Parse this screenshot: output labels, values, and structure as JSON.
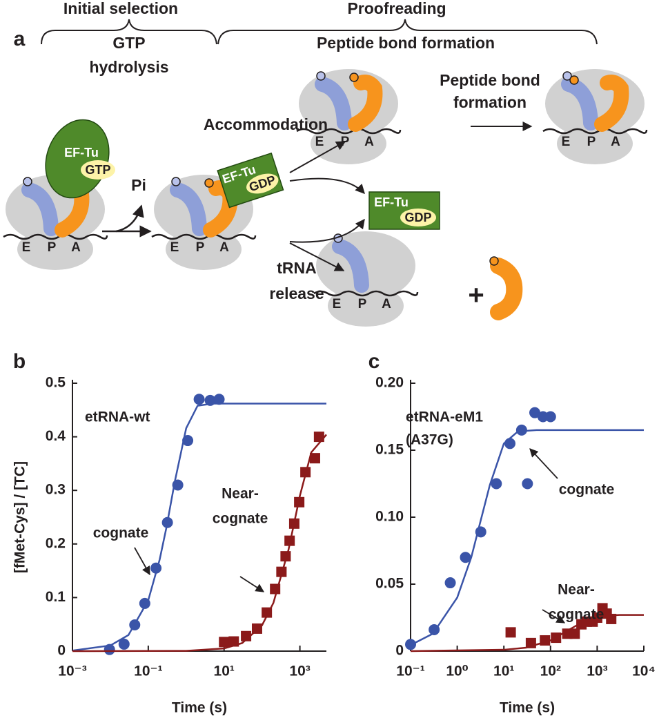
{
  "panel_a": {
    "label": "a",
    "phases": [
      "Initial selection",
      "Proofreading"
    ],
    "gtp_hydrolysis": [
      "GTP",
      "hydrolysis"
    ],
    "peptide_bond_header": "Peptide bond formation",
    "factor": "EF-Tu",
    "gtp": "GTP",
    "gdp": "GDP",
    "pi": "Pi",
    "accommodation": "Accommodation",
    "peptide_bond_formation": [
      "Peptide bond",
      "formation"
    ],
    "trna_release": [
      "tRNA",
      "release"
    ],
    "plus": "+",
    "sites": [
      "E",
      "P",
      "A"
    ]
  },
  "chart_data": [
    {
      "type": "scatter",
      "panel_label": "b",
      "title": [
        "etRNA-wt"
      ],
      "x_scale": "log",
      "xlim": [
        0.001,
        5000
      ],
      "xticks": [
        {
          "value": 0.001,
          "label": "10⁻³"
        },
        {
          "value": 0.1,
          "label": "10⁻¹"
        },
        {
          "value": 10,
          "label": "10¹"
        },
        {
          "value": 1000,
          "label": "10³"
        }
      ],
      "ylim": [
        0,
        0.5
      ],
      "yticks": [
        0,
        0.1,
        0.2,
        0.3,
        0.4,
        0.5
      ],
      "xlabel": "Time (s)",
      "ylabel": "[fMet-Cys] / [TC]",
      "series": [
        {
          "label": [
            "cognate"
          ],
          "color": "#3a54a8",
          "marker": "circle",
          "x": [
            0.0095,
            0.023,
            0.044,
            0.081,
            0.16,
            0.32,
            0.6,
            1.1,
            2.2,
            4.3,
            7.4
          ],
          "values": [
            0.003,
            0.013,
            0.049,
            0.089,
            0.155,
            0.24,
            0.31,
            0.393,
            0.47,
            0.468,
            0.47
          ],
          "fit": {
            "x": [
              0.001,
              0.01,
              0.03,
              0.1,
              0.2,
              0.3,
              0.5,
              1,
              2,
              5,
              5000
            ],
            "values": [
              0.001,
              0.0105,
              0.03,
              0.095,
              0.171,
              0.23,
              0.316,
              0.416,
              0.458,
              0.462,
              0.462
            ]
          }
        },
        {
          "label": [
            "Near-",
            "cognate"
          ],
          "color": "#8b1a1a",
          "marker": "square",
          "x": [
            10,
            18,
            38,
            74,
            134,
            222,
            326,
            420,
            535,
            710,
            960,
            1400,
            2500,
            3200
          ],
          "values": [
            0.017,
            0.018,
            0.028,
            0.042,
            0.072,
            0.116,
            0.148,
            0.177,
            0.206,
            0.238,
            0.278,
            0.334,
            0.36,
            0.4
          ],
          "fit": {
            "x": [
              0.001,
              1,
              10,
              30,
              100,
              200,
              500,
              1000,
              2000,
              5000
            ],
            "values": [
              0,
              0.0005,
              0.005,
              0.015,
              0.048,
              0.09,
              0.189,
              0.29,
              0.371,
              0.404
            ]
          }
        }
      ]
    },
    {
      "type": "scatter",
      "panel_label": "c",
      "title": [
        "etRNA-eM1",
        "(A37G)"
      ],
      "x_scale": "log",
      "xlim": [
        0.1,
        10000
      ],
      "xticks": [
        {
          "value": 0.1,
          "label": "10⁻¹"
        },
        {
          "value": 1,
          "label": "10⁰"
        },
        {
          "value": 10,
          "label": "10¹"
        },
        {
          "value": 100,
          "label": "10²"
        },
        {
          "value": 1000,
          "label": "10³"
        },
        {
          "value": 10000,
          "label": "10⁴"
        }
      ],
      "ylim": [
        0,
        0.2
      ],
      "yticks": [
        0,
        0.05,
        {
          "value": 0.1,
          "label": "0.10"
        },
        0.15,
        {
          "value": 0.2,
          "label": "0.20"
        }
      ],
      "xlabel": "Time (s)",
      "series": [
        {
          "label": [
            "cognate"
          ],
          "color": "#3a54a8",
          "marker": "circle",
          "x": [
            0.1,
            0.32,
            0.71,
            1.5,
            3.2,
            6.9,
            13.5,
            24,
            32,
            46,
            69,
            100
          ],
          "values": [
            0.005,
            0.016,
            0.051,
            0.07,
            0.089,
            0.125,
            0.155,
            0.165,
            0.125,
            0.178,
            0.175,
            0.175
          ],
          "fit": {
            "x": [
              0.1,
              0.3,
              1,
              2,
              3,
              5,
              10,
              20,
              50,
              10000
            ],
            "values": [
              0.0045,
              0.013,
              0.04,
              0.07,
              0.094,
              0.124,
              0.155,
              0.164,
              0.165,
              0.165
            ]
          }
        },
        {
          "label": [
            "Near-",
            "cognate"
          ],
          "color": "#8b1a1a",
          "marker": "square",
          "x": [
            14,
            38,
            76,
            131,
            229,
            330,
            460,
            600,
            800,
            1000,
            1300,
            1600,
            2000
          ],
          "values": [
            0.014,
            0.006,
            0.008,
            0.01,
            0.013,
            0.013,
            0.02,
            0.022,
            0.022,
            0.025,
            0.032,
            0.028,
            0.024
          ],
          "fit": {
            "x": [
              0.1,
              10,
              30,
              100,
              200,
              500,
              1000,
              3000,
              10000
            ],
            "values": [
              0,
              0.001,
              0.0026,
              0.008,
              0.014,
              0.022,
              0.026,
              0.027,
              0.027
            ]
          }
        }
      ]
    }
  ]
}
